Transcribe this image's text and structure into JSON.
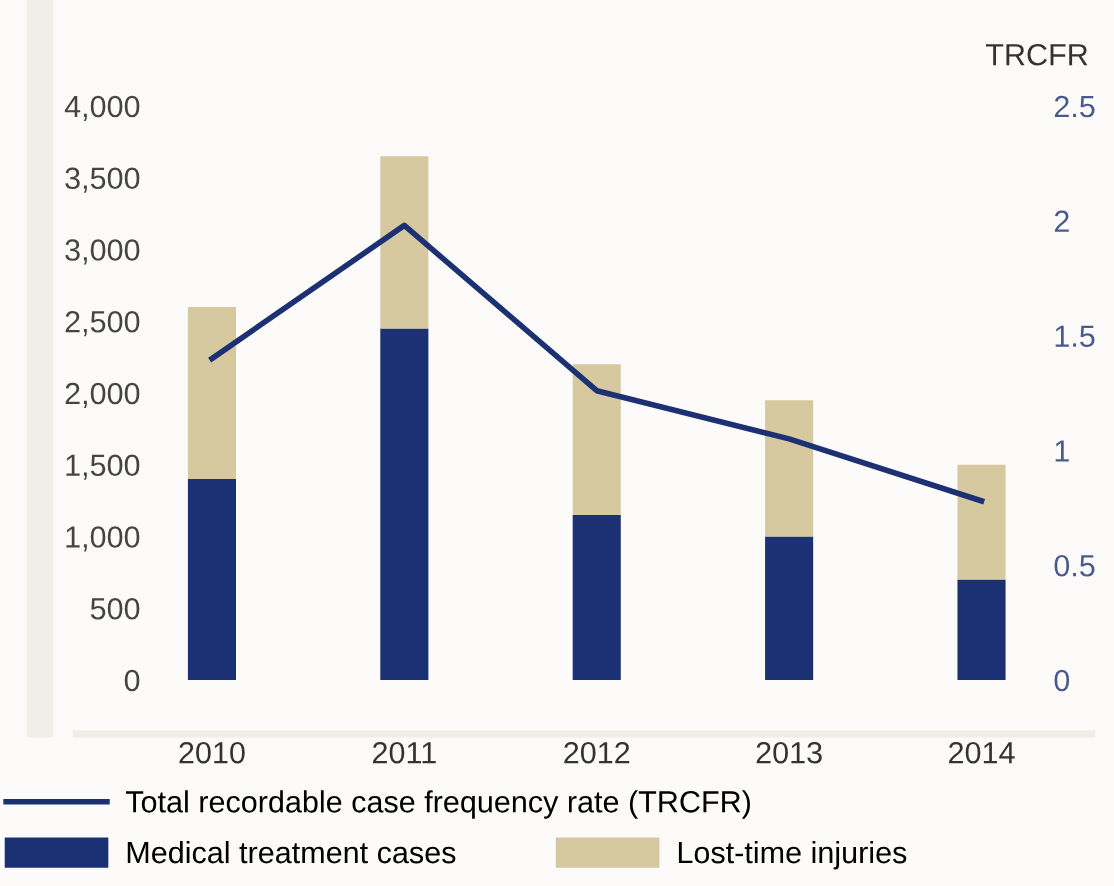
{
  "chart_data": {
    "type": "bar",
    "stacked": true,
    "categories": [
      "2010",
      "2011",
      "2012",
      "2013",
      "2014"
    ],
    "series": [
      {
        "name": "Medical treatment cases",
        "color": "#1c3174",
        "values": [
          1400,
          2450,
          1150,
          1000,
          700
        ]
      },
      {
        "name": "Lost-time injuries",
        "color": "#d6c89f",
        "values": [
          1200,
          1200,
          1050,
          950,
          800
        ]
      },
      {
        "name": "Total recordable case frequency rate (TRCFR)",
        "type": "line",
        "axis": "y2",
        "color": "#1c3174",
        "values": [
          1.4,
          1.98,
          1.26,
          1.05,
          0.78
        ]
      }
    ],
    "ylim": [
      0,
      4000
    ],
    "yticks": [
      {
        "value": 0,
        "label": "0"
      },
      {
        "value": 500,
        "label": "500"
      },
      {
        "value": 1000,
        "label": "1,000"
      },
      {
        "value": 1500,
        "label": "1,500"
      },
      {
        "value": 2000,
        "label": "2,000"
      },
      {
        "value": 2500,
        "label": "2,500"
      },
      {
        "value": 3000,
        "label": "3,000"
      },
      {
        "value": 3500,
        "label": "3,500"
      },
      {
        "value": 4000,
        "label": "4,000"
      }
    ],
    "y2label": "TRCFR",
    "y2lim": [
      0,
      2.5
    ],
    "y2ticks": [
      0,
      0.5,
      1,
      1.5,
      2,
      2.5
    ],
    "grid": false,
    "legend": "bottom"
  }
}
